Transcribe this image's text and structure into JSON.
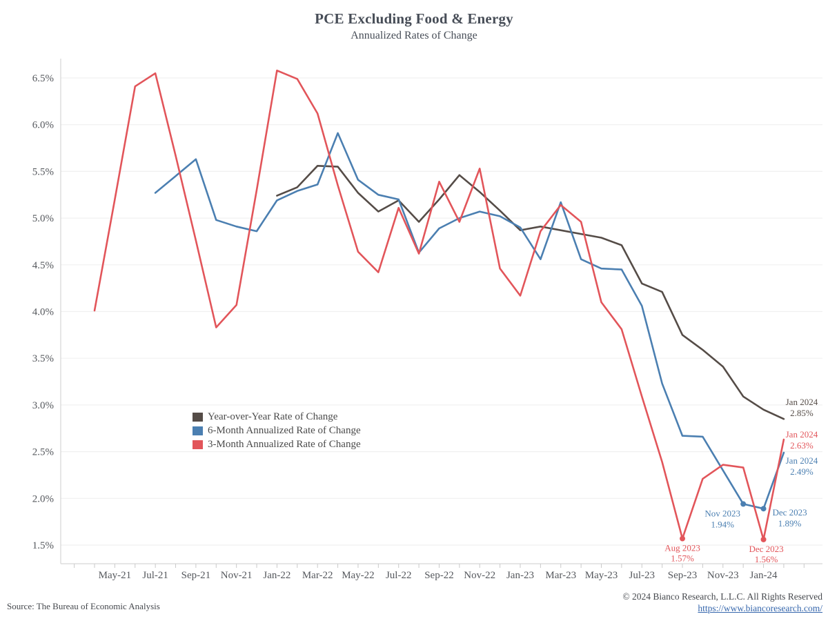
{
  "header": {
    "title": "PCE Excluding Food & Energy",
    "subtitle": "Annualized Rates of Change"
  },
  "colors": {
    "background": "#ffffff",
    "grid": "#f0f0f0",
    "axis_line": "#d6d6d6",
    "tick": "#c9c9c9",
    "axis_text": "#55585d",
    "heading_text": "#474d57",
    "footer_text": "#45484d",
    "link": "#3566ac"
  },
  "chart_data": {
    "type": "line",
    "unit": "percent",
    "grid": "horizontal",
    "legend_position": "inside-left-middle",
    "ylim": [
      1.5,
      6.5
    ],
    "x": [
      "Mar-21",
      "Apr-21",
      "May-21",
      "Jun-21",
      "Jul-21",
      "Aug-21",
      "Sep-21",
      "Oct-21",
      "Nov-21",
      "Dec-21",
      "Jan-22",
      "Feb-22",
      "Mar-22",
      "Apr-22",
      "May-22",
      "Jun-22",
      "Jul-22",
      "Aug-22",
      "Sep-22",
      "Oct-22",
      "Nov-22",
      "Dec-22",
      "Jan-23",
      "Feb-23",
      "Mar-23",
      "Apr-23",
      "May-23",
      "Jun-23",
      "Jul-23",
      "Aug-23",
      "Sep-23",
      "Oct-23",
      "Nov-23",
      "Dec-23",
      "Jan-24"
    ],
    "x_tick_labels": [
      "May-21",
      "Jul-21",
      "Sep-21",
      "Nov-21",
      "Jan-22",
      "Mar-22",
      "May-22",
      "Jul-22",
      "Sep-22",
      "Nov-22",
      "Jan-23",
      "Mar-23",
      "May-23",
      "Jul-23",
      "Sep-23",
      "Nov-23",
      "Jan-24"
    ],
    "y_ticks": [
      {
        "v": 6.5,
        "label": "6.5%"
      },
      {
        "v": 6.0,
        "label": "6.0%"
      },
      {
        "v": 5.5,
        "label": "5.5%"
      },
      {
        "v": 5.0,
        "label": "5.0%"
      },
      {
        "v": 4.5,
        "label": "4.5%"
      },
      {
        "v": 4.0,
        "label": "4.0%"
      },
      {
        "v": 3.5,
        "label": "3.5%"
      },
      {
        "v": 3.0,
        "label": "3.0%"
      },
      {
        "v": 2.5,
        "label": "2.5%"
      },
      {
        "v": 2.0,
        "label": "2.0%"
      },
      {
        "v": 1.5,
        "label": "1.5%"
      }
    ],
    "series": [
      {
        "id": "yoy",
        "name": "Year-over-Year Rate of Change",
        "color": "#554c47",
        "values": [
          null,
          null,
          null,
          null,
          null,
          null,
          null,
          null,
          null,
          5.24,
          5.33,
          5.56,
          5.55,
          5.27,
          5.07,
          5.19,
          4.96,
          5.2,
          5.46,
          5.28,
          5.08,
          4.87,
          4.91,
          4.87,
          4.83,
          4.79,
          4.71,
          4.3,
          4.21,
          3.75,
          3.59,
          3.41,
          3.09,
          2.95,
          2.85
        ]
      },
      {
        "id": "m6",
        "name": "6-Month Annualized Rate of Change",
        "color": "#4b7fb1",
        "values": [
          null,
          null,
          null,
          5.27,
          5.45,
          5.63,
          4.98,
          4.91,
          4.86,
          5.19,
          5.29,
          5.36,
          5.91,
          5.41,
          5.25,
          5.2,
          4.63,
          4.89,
          5.0,
          5.07,
          5.02,
          4.9,
          4.56,
          5.17,
          4.56,
          4.46,
          4.45,
          4.06,
          3.23,
          2.67,
          2.66,
          2.3,
          1.94,
          1.89,
          2.49
        ]
      },
      {
        "id": "m3",
        "name": "3-Month Annualized Rate of Change",
        "color": "#e2555a",
        "values": [
          4.01,
          5.2,
          6.41,
          6.55,
          5.67,
          4.76,
          3.83,
          4.07,
          5.3,
          6.58,
          6.49,
          6.12,
          5.35,
          4.64,
          4.42,
          5.11,
          4.62,
          5.39,
          4.96,
          5.53,
          4.46,
          4.17,
          4.86,
          5.14,
          4.96,
          4.1,
          3.81,
          3.09,
          2.39,
          1.57,
          2.21,
          2.36,
          2.33,
          1.56,
          2.63
        ]
      }
    ],
    "annotations": [
      {
        "series": "yoy",
        "month": "Jan-24",
        "label": "Jan 2024",
        "value_label": "2.85%",
        "marker": false,
        "dx": 26,
        "dy1": -20,
        "dy2": -4,
        "anchor": "middle"
      },
      {
        "series": "m3",
        "month": "Jan-24",
        "label": "Jan 2024",
        "value_label": "2.63%",
        "marker": false,
        "dx": 26,
        "dy1": -3,
        "dy2": 13,
        "anchor": "middle"
      },
      {
        "series": "m6",
        "month": "Jan-24",
        "label": "Jan 2024",
        "value_label": "2.49%",
        "marker": false,
        "dx": 26,
        "dy1": 16,
        "dy2": 32,
        "anchor": "middle"
      },
      {
        "series": "m6",
        "month": "Nov-23",
        "label": "Nov 2023",
        "value_label": "1.94%",
        "marker": true,
        "dx": -30,
        "dy1": 18,
        "dy2": 34,
        "anchor": "middle"
      },
      {
        "series": "m6",
        "month": "Dec-23",
        "label": "Dec 2023",
        "value_label": "1.89%",
        "marker": true,
        "dx": 38,
        "dy1": 10,
        "dy2": 26,
        "anchor": "middle"
      },
      {
        "series": "m3",
        "month": "Aug-23",
        "label": "Aug 2023",
        "value_label": "1.57%",
        "marker": true,
        "dx": 0,
        "dy1": 18,
        "dy2": 33,
        "anchor": "middle"
      },
      {
        "series": "m3",
        "month": "Dec-23",
        "label": "Dec 2023",
        "value_label": "1.56%",
        "marker": true,
        "dx": 4,
        "dy1": 18,
        "dy2": 33,
        "anchor": "middle"
      }
    ]
  },
  "footer": {
    "source": "Source: The Bureau of Economic Analysis",
    "copyright": "© 2024 Bianco Research, L.L.C. All Rights Reserved",
    "link": "https://www.biancoresearch.com/"
  }
}
